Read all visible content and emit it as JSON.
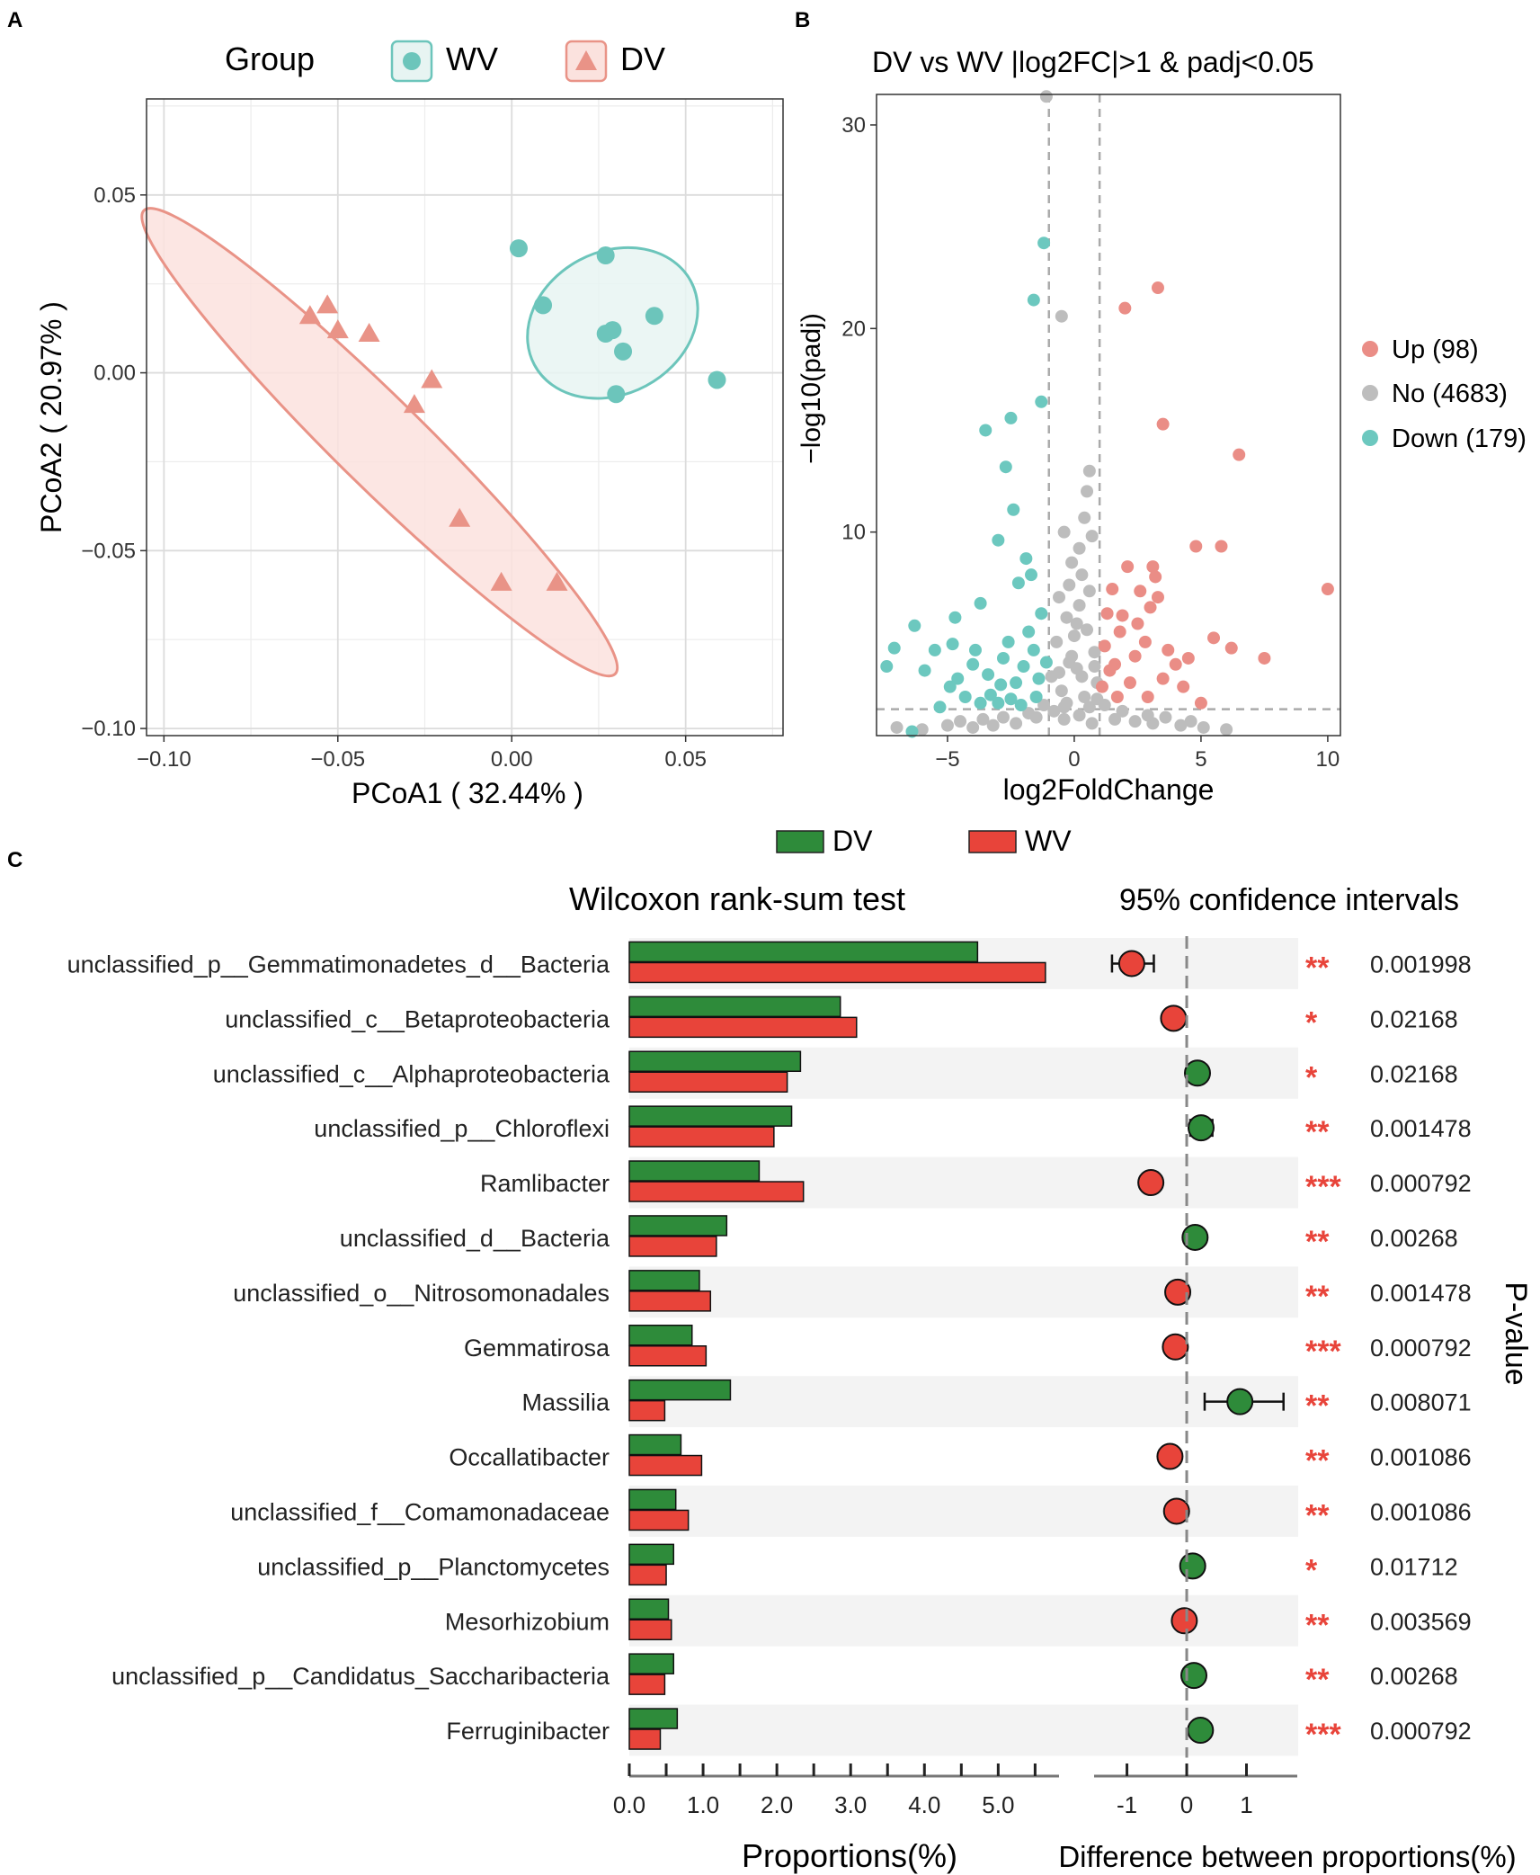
{
  "panels": {
    "a": "A",
    "b": "B",
    "c": "C"
  },
  "chart_data": [
    {
      "type": "scatter",
      "panel": "A",
      "xlabel": "PCoA1 ( 32.44% )",
      "ylabel": "PCoA2 ( 20.97% )",
      "xlim": [
        -0.105,
        0.078
      ],
      "ylim": [
        -0.102,
        0.077
      ],
      "xticks": [
        -0.1,
        -0.05,
        0.0,
        0.05
      ],
      "xtick_labels": [
        "−0.10",
        "−0.05",
        "0.00",
        "0.05"
      ],
      "yticks": [
        0.05,
        0.0,
        -0.05,
        -0.1
      ],
      "ytick_labels": [
        "0.05",
        "0.00",
        "−0.05",
        "−0.10"
      ],
      "grid": true,
      "legend": {
        "title": "Group",
        "position": "top",
        "entries": [
          {
            "label": "WV",
            "color": "#6cc5bb",
            "shape": "circle"
          },
          {
            "label": "DV",
            "color": "#e99387",
            "shape": "triangle"
          }
        ]
      },
      "series": [
        {
          "name": "WV",
          "color": "#6cc5bb",
          "shape": "circle",
          "points": [
            [
              0.002,
              0.035
            ],
            [
              0.027,
              0.033
            ],
            [
              0.009,
              0.019
            ],
            [
              0.027,
              0.011
            ],
            [
              0.029,
              0.012
            ],
            [
              0.041,
              0.016
            ],
            [
              0.032,
              0.006
            ],
            [
              0.059,
              -0.002
            ],
            [
              0.03,
              -0.006
            ]
          ],
          "ellipse": {
            "center": [
              0.029,
              0.014
            ],
            "rx": 0.0255,
            "ry": 0.02,
            "rotation": -28
          }
        },
        {
          "name": "DV",
          "color": "#e99387",
          "shape": "triangle",
          "points": [
            [
              -0.053,
              0.019
            ],
            [
              -0.058,
              0.016
            ],
            [
              -0.05,
              0.012
            ],
            [
              -0.041,
              0.011
            ],
            [
              -0.023,
              -0.002
            ],
            [
              -0.028,
              -0.009
            ],
            [
              -0.015,
              -0.041
            ],
            [
              -0.003,
              -0.059
            ],
            [
              0.013,
              -0.059
            ]
          ],
          "ellipse": {
            "center": [
              -0.038,
              -0.0195
            ],
            "rx": 0.095,
            "ry": 0.0125,
            "rotation": 44.5
          }
        }
      ]
    },
    {
      "type": "scatter",
      "panel": "B",
      "title": "DV vs WV   |log2FC|>1 & padj<0.05",
      "xlabel": "log2FoldChange",
      "ylabel": "−log10(padj)",
      "xlim": [
        -7.8,
        10.5
      ],
      "ylim": [
        0,
        31.5
      ],
      "xticks": [
        -5,
        0,
        5,
        10
      ],
      "xtick_labels": [
        "−5",
        "0",
        "5",
        "10"
      ],
      "yticks": [
        10,
        20,
        30
      ],
      "ytick_labels": [
        "10",
        "20",
        "30"
      ],
      "thresholds": {
        "x": [
          -1,
          1
        ],
        "y": 1.3
      },
      "legend": {
        "position": "right",
        "entries": [
          {
            "label": "Up (98)",
            "color": "#ea8d86"
          },
          {
            "label": "No (4683)",
            "color": "#bdbdbd"
          },
          {
            "label": "Down (179)",
            "color": "#6cc8bf"
          }
        ]
      },
      "series": [
        {
          "name": "Up",
          "color": "#ea8d86",
          "points": [
            [
              3.3,
              22.0
            ],
            [
              2.0,
              21.0
            ],
            [
              3.5,
              15.3
            ],
            [
              6.5,
              13.8
            ],
            [
              4.8,
              9.3
            ],
            [
              5.8,
              9.3
            ],
            [
              10.0,
              7.2
            ],
            [
              7.5,
              3.8
            ],
            [
              6.2,
              4.3
            ],
            [
              5.5,
              4.8
            ],
            [
              3.0,
              6.3
            ],
            [
              3.2,
              7.8
            ],
            [
              2.5,
              5.5
            ],
            [
              1.5,
              7.2
            ],
            [
              2.8,
              4.6
            ],
            [
              4.0,
              3.5
            ],
            [
              4.5,
              3.8
            ],
            [
              3.5,
              2.8
            ],
            [
              2.2,
              2.6
            ],
            [
              1.4,
              3.2
            ],
            [
              1.8,
              5.1
            ],
            [
              3.1,
              8.3
            ],
            [
              1.3,
              6.0
            ],
            [
              2.6,
              7.1
            ],
            [
              4.3,
              2.4
            ],
            [
              5.0,
              1.6
            ],
            [
              1.7,
              1.9
            ],
            [
              2.4,
              3.9
            ],
            [
              3.7,
              4.2
            ],
            [
              1.1,
              2.4
            ],
            [
              2.9,
              1.9
            ],
            [
              1.2,
              4.4
            ],
            [
              1.6,
              3.5
            ],
            [
              2.1,
              8.3
            ],
            [
              3.3,
              6.8
            ],
            [
              1.9,
              5.9
            ]
          ]
        },
        {
          "name": "No",
          "color": "#bdbdbd",
          "points": [
            [
              -1.1,
              31.4
            ],
            [
              -0.5,
              20.6
            ],
            [
              0.6,
              13.0
            ],
            [
              0.5,
              12.0
            ],
            [
              0.4,
              10.7
            ],
            [
              -0.4,
              10.0
            ],
            [
              0.7,
              9.8
            ],
            [
              -0.1,
              8.5
            ],
            [
              0.3,
              7.9
            ],
            [
              -0.6,
              6.8
            ],
            [
              -0.3,
              5.8
            ],
            [
              0.2,
              6.4
            ],
            [
              0.5,
              5.2
            ],
            [
              -0.7,
              4.6
            ],
            [
              0.8,
              4.1
            ],
            [
              -0.2,
              3.6
            ],
            [
              0.1,
              3.3
            ],
            [
              -0.9,
              2.9
            ],
            [
              0.9,
              2.6
            ],
            [
              -0.5,
              2.2
            ],
            [
              0.4,
              1.9
            ],
            [
              -0.3,
              1.6
            ],
            [
              0.6,
              1.4
            ],
            [
              -0.8,
              1.2
            ],
            [
              0.2,
              1.0
            ],
            [
              -0.4,
              0.8
            ],
            [
              0.7,
              0.6
            ],
            [
              -1.5,
              0.9
            ],
            [
              1.6,
              0.8
            ],
            [
              -2.3,
              0.6
            ],
            [
              2.4,
              0.7
            ],
            [
              -3.2,
              0.5
            ],
            [
              3.1,
              0.6
            ],
            [
              -4.0,
              0.4
            ],
            [
              4.2,
              0.5
            ],
            [
              -5.0,
              0.5
            ],
            [
              5.1,
              0.4
            ],
            [
              -6.0,
              0.3
            ],
            [
              -7.0,
              0.4
            ],
            [
              6.0,
              0.3
            ],
            [
              -1.8,
              1.1
            ],
            [
              1.9,
              1.2
            ],
            [
              -2.8,
              0.9
            ],
            [
              2.9,
              1.0
            ],
            [
              -3.6,
              0.8
            ],
            [
              3.6,
              0.9
            ],
            [
              -4.5,
              0.7
            ],
            [
              4.6,
              0.7
            ],
            [
              0.0,
              4.9
            ],
            [
              0.1,
              5.5
            ],
            [
              -0.1,
              3.9
            ],
            [
              0.3,
              2.9
            ],
            [
              -0.6,
              3.1
            ],
            [
              0.8,
              3.4
            ],
            [
              0.6,
              7.1
            ],
            [
              -0.2,
              7.4
            ],
            [
              0.2,
              9.2
            ],
            [
              -0.4,
              1.4
            ],
            [
              0.9,
              1.8
            ],
            [
              -1.2,
              1.5
            ],
            [
              1.2,
              1.5
            ]
          ]
        },
        {
          "name": "Down",
          "color": "#6cc8bf",
          "points": [
            [
              -1.2,
              24.2
            ],
            [
              -1.6,
              21.4
            ],
            [
              -1.3,
              16.4
            ],
            [
              -2.5,
              15.6
            ],
            [
              -3.5,
              15.0
            ],
            [
              -2.7,
              13.2
            ],
            [
              -2.4,
              11.1
            ],
            [
              -3.0,
              9.6
            ],
            [
              -1.9,
              8.7
            ],
            [
              -1.7,
              7.9
            ],
            [
              -2.2,
              7.5
            ],
            [
              -3.7,
              6.5
            ],
            [
              -4.7,
              5.8
            ],
            [
              -6.3,
              5.4
            ],
            [
              -7.1,
              4.3
            ],
            [
              -7.4,
              3.4
            ],
            [
              -5.5,
              4.2
            ],
            [
              -4.8,
              4.5
            ],
            [
              -4.0,
              3.5
            ],
            [
              -4.6,
              2.8
            ],
            [
              -3.4,
              3.0
            ],
            [
              -2.9,
              2.5
            ],
            [
              -2.0,
              3.4
            ],
            [
              -1.6,
              4.2
            ],
            [
              -3.3,
              2.0
            ],
            [
              -2.5,
              1.8
            ],
            [
              -4.3,
              1.9
            ],
            [
              -5.3,
              1.4
            ],
            [
              -3.7,
              1.6
            ],
            [
              -2.3,
              2.6
            ],
            [
              -1.4,
              2.8
            ],
            [
              -1.8,
              5.1
            ],
            [
              -2.6,
              4.6
            ],
            [
              -1.3,
              6.0
            ],
            [
              -3.9,
              4.2
            ],
            [
              -6.4,
              0.2
            ],
            [
              -2.1,
              1.5
            ],
            [
              -1.5,
              1.9
            ],
            [
              -3.0,
              1.6
            ],
            [
              -4.9,
              2.4
            ],
            [
              -5.9,
              3.2
            ],
            [
              -1.1,
              3.6
            ],
            [
              -2.8,
              3.8
            ]
          ]
        }
      ]
    },
    {
      "type": "bar",
      "panel": "C",
      "orientation": "horizontal",
      "title": "Wilcoxon rank-sum test",
      "xlabel": "Proportions(%)",
      "xlim": [
        0,
        5.8
      ],
      "xticks": [
        0.0,
        1.0,
        2.0,
        3.0,
        4.0,
        5.0
      ],
      "xtick_labels": [
        "0.0",
        "1.0",
        "2.0",
        "3.0",
        "4.0",
        "5.0"
      ],
      "legend": {
        "position": "top",
        "entries": [
          {
            "label": "DV",
            "color": "#2e8b3a"
          },
          {
            "label": "WV",
            "color": "#e8443a"
          }
        ]
      },
      "categories": [
        "unclassified_p__Gemmatimonadetes_d__Bacteria",
        "unclassified_c__Betaproteobacteria",
        "unclassified_c__Alphaproteobacteria",
        "unclassified_p__Chloroflexi",
        "Ramlibacter",
        "unclassified_d__Bacteria",
        "unclassified_o__Nitrosomonadales",
        "Gemmatirosa",
        "Massilia",
        "Occallatibacter",
        "unclassified_f__Comamonadaceae",
        "unclassified_p__Planctomycetes",
        "Mesorhizobium",
        "unclassified_p__Candidatus_Saccharibacteria",
        "Ferruginibacter"
      ],
      "series": [
        {
          "name": "DV",
          "color": "#2e8b3a",
          "values": [
            4.72,
            2.86,
            2.32,
            2.2,
            1.76,
            1.32,
            0.95,
            0.85,
            1.37,
            0.7,
            0.63,
            0.6,
            0.53,
            0.6,
            0.65
          ]
        },
        {
          "name": "WV",
          "color": "#e8443a",
          "values": [
            5.64,
            3.08,
            2.14,
            1.96,
            2.36,
            1.18,
            1.1,
            1.04,
            0.48,
            0.98,
            0.8,
            0.5,
            0.57,
            0.48,
            0.42
          ]
        }
      ]
    },
    {
      "type": "scatter",
      "panel": "C",
      "subtype": "confidence-interval",
      "title": "95% confidence intervals",
      "xlabel": "Difference between proportions(%)",
      "xlim": [
        -1.55,
        1.85
      ],
      "xticks": [
        -1,
        0,
        1
      ],
      "xtick_labels": [
        "-1",
        "0",
        "1"
      ],
      "p_value_label": "P-value",
      "categories": [
        "unclassified_p__Gemmatimonadetes_d__Bacteria",
        "unclassified_c__Betaproteobacteria",
        "unclassified_c__Alphaproteobacteria",
        "unclassified_p__Chloroflexi",
        "Ramlibacter",
        "unclassified_d__Bacteria",
        "unclassified_o__Nitrosomonadales",
        "Gemmatirosa",
        "Massilia",
        "Occallatibacter",
        "unclassified_f__Comamonadaceae",
        "unclassified_p__Planctomycetes",
        "Mesorhizobium",
        "unclassified_p__Candidatus_Saccharibacteria",
        "Ferruginibacter"
      ],
      "differences": [
        -0.92,
        -0.22,
        0.18,
        0.24,
        -0.6,
        0.14,
        -0.15,
        -0.19,
        0.89,
        -0.28,
        -0.17,
        0.1,
        -0.04,
        0.12,
        0.23
      ],
      "ci_low": [
        -1.25,
        -0.32,
        0.05,
        0.06,
        -0.72,
        0.06,
        -0.24,
        -0.26,
        0.3,
        -0.39,
        -0.26,
        0.03,
        -0.1,
        0.05,
        0.13
      ],
      "ci_high": [
        -0.55,
        -0.1,
        0.33,
        0.43,
        -0.46,
        0.25,
        -0.06,
        -0.12,
        1.62,
        -0.15,
        -0.07,
        0.18,
        0.02,
        0.2,
        0.34
      ],
      "point_colors": [
        "#e8443a",
        "#e8443a",
        "#2e8b3a",
        "#2e8b3a",
        "#e8443a",
        "#2e8b3a",
        "#e8443a",
        "#e8443a",
        "#2e8b3a",
        "#e8443a",
        "#e8443a",
        "#2e8b3a",
        "#e8443a",
        "#2e8b3a",
        "#2e8b3a"
      ],
      "significance": [
        "**",
        "*",
        "*",
        "**",
        "***",
        "**",
        "**",
        "***",
        "**",
        "**",
        "**",
        "*",
        "**",
        "**",
        "***"
      ],
      "p_values": [
        "0.001998",
        "0.02168",
        "0.02168",
        "0.001478",
        "0.000792",
        "0.00268",
        "0.001478",
        "0.000792",
        "0.008071",
        "0.001086",
        "0.001086",
        "0.01712",
        "0.003569",
        "0.00268",
        "0.000792"
      ]
    }
  ]
}
